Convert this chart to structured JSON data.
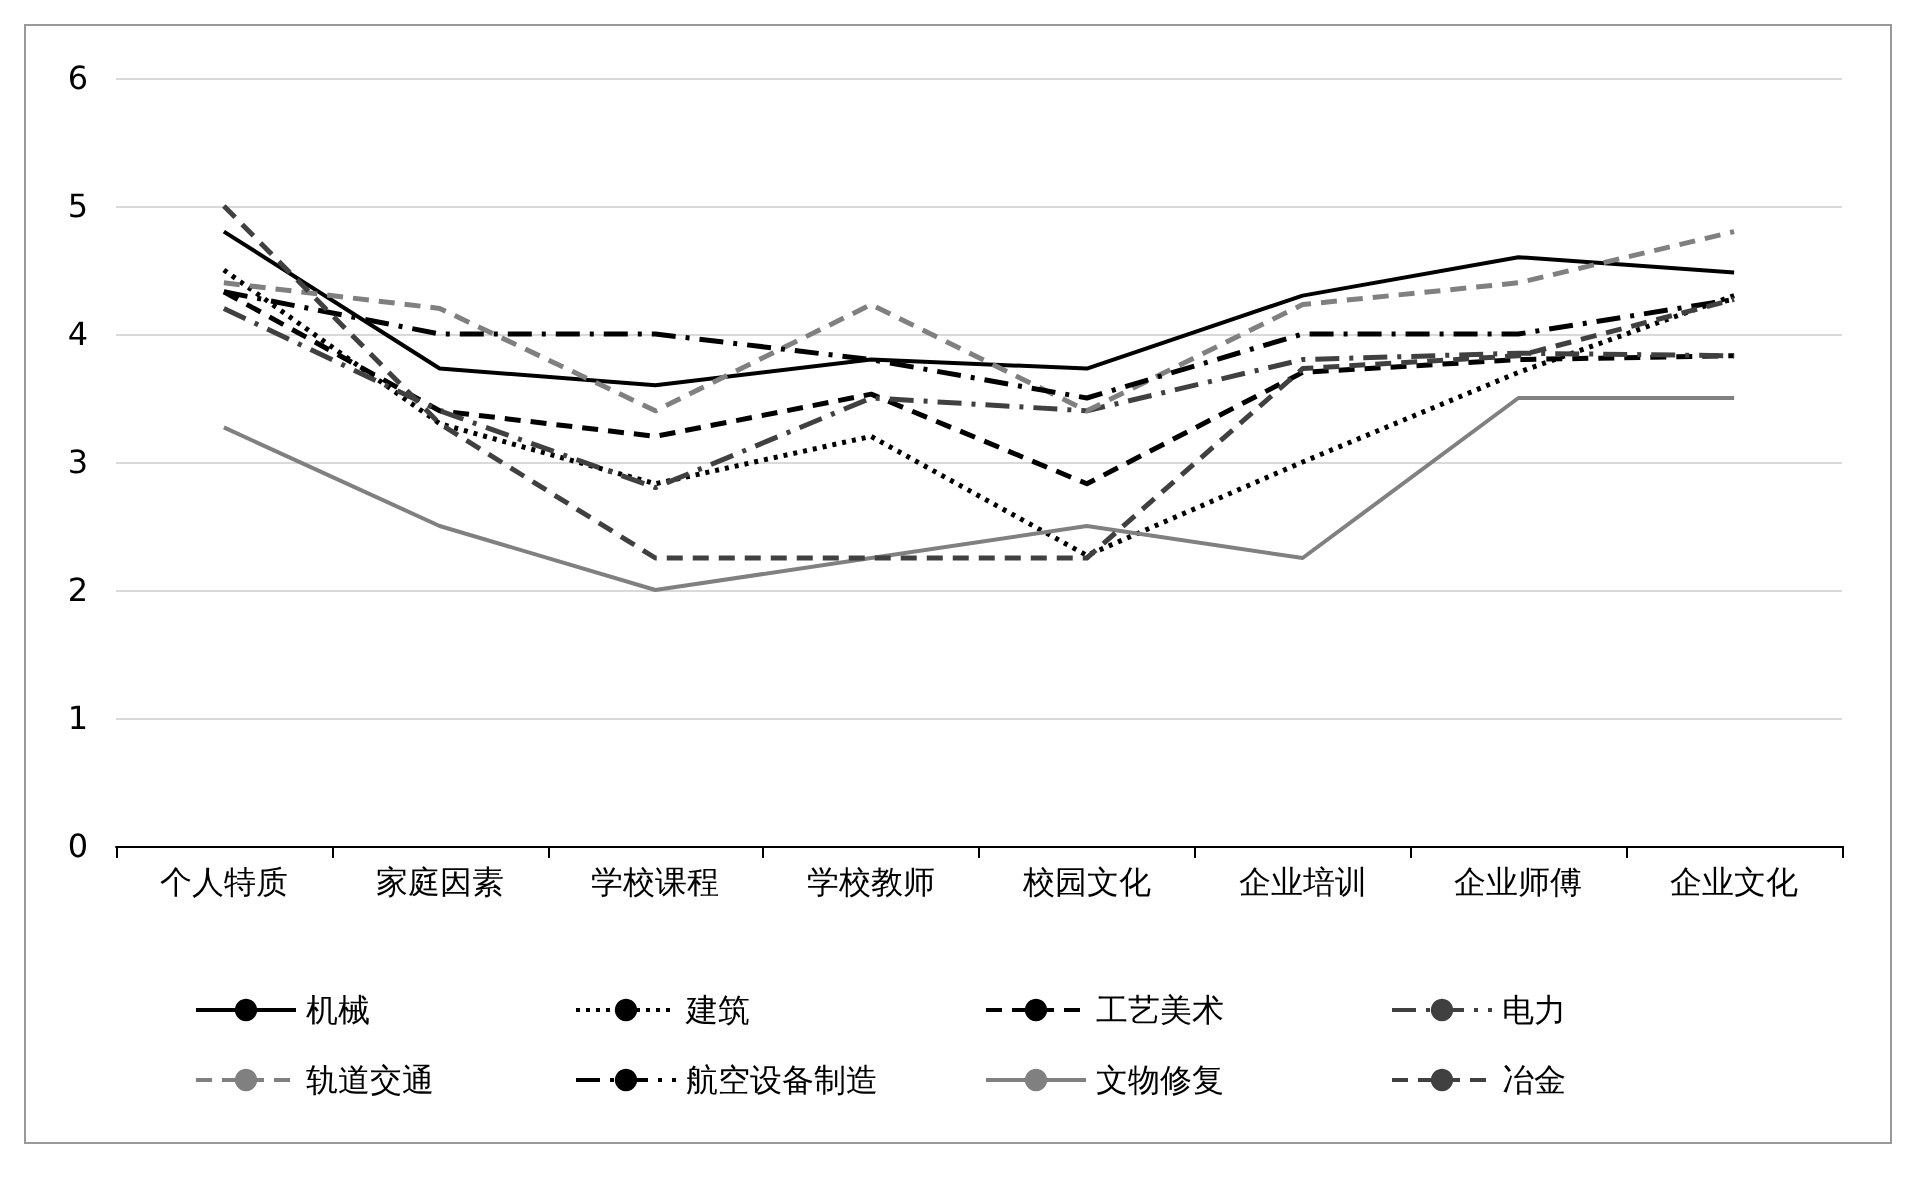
{
  "chart_data": {
    "type": "line",
    "categories": [
      "个人特质",
      "家庭因素",
      "学校课程",
      "学校教师",
      "校园文化",
      "企业培训",
      "企业师傅",
      "企业文化"
    ],
    "ylim": [
      0,
      6
    ],
    "yticks": [
      0,
      1,
      2,
      3,
      4,
      5,
      6
    ],
    "grid": "y",
    "legend": "bottom",
    "marker": "none",
    "series": [
      {
        "name": "机械",
        "color": "#000000",
        "line_style": "solid",
        "values": [
          4.8,
          3.73,
          3.6,
          3.8,
          3.73,
          4.3,
          4.6,
          4.48
        ]
      },
      {
        "name": "建筑",
        "color": "#000000",
        "line_style": "dotted",
        "values": [
          4.5,
          3.3,
          2.83,
          3.2,
          2.27,
          3.0,
          3.7,
          4.3
        ]
      },
      {
        "name": "工艺美术",
        "color": "#000000",
        "line_style": "dashed",
        "values": [
          4.33,
          3.4,
          3.2,
          3.53,
          2.83,
          3.7,
          3.8,
          3.83
        ]
      },
      {
        "name": "电力",
        "color": "#404040",
        "line_style": "dashdot",
        "values": [
          4.2,
          3.4,
          2.8,
          3.5,
          3.4,
          3.8,
          3.85,
          3.83
        ]
      },
      {
        "name": "轨道交通",
        "color": "#808080",
        "line_style": "dashed",
        "values": [
          4.4,
          4.2,
          3.4,
          4.23,
          3.4,
          4.23,
          4.4,
          4.8
        ]
      },
      {
        "name": "航空设备制造",
        "color": "#000000",
        "line_style": "dashdot",
        "values": [
          4.33,
          4.0,
          4.0,
          3.8,
          3.5,
          4.0,
          4.0,
          4.27
        ]
      },
      {
        "name": "文物修复",
        "color": "#808080",
        "line_style": "solid",
        "values": [
          3.27,
          2.5,
          2.0,
          2.25,
          2.5,
          2.25,
          3.5,
          3.5
        ]
      },
      {
        "name": "冶金",
        "color": "#404040",
        "line_style": "dashed",
        "values": [
          5.0,
          3.3,
          2.25,
          2.25,
          2.25,
          3.73,
          3.83,
          4.27
        ]
      }
    ]
  }
}
